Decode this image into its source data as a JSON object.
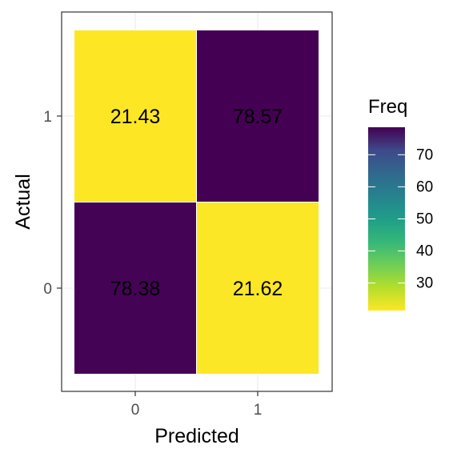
{
  "chart_data": {
    "type": "heatmap",
    "title": "",
    "xlabel": "Predicted",
    "ylabel": "Actual",
    "x_categories": [
      "0",
      "1"
    ],
    "y_categories": [
      "0",
      "1"
    ],
    "cells": [
      {
        "x": "0",
        "y": "1",
        "value": 21.43,
        "label": "21.43"
      },
      {
        "x": "1",
        "y": "1",
        "value": 78.57,
        "label": "78.57"
      },
      {
        "x": "0",
        "y": "0",
        "value": 78.38,
        "label": "78.38"
      },
      {
        "x": "1",
        "y": "0",
        "value": 21.62,
        "label": "21.62"
      }
    ],
    "legend": {
      "title": "Freq",
      "placement": "right",
      "ticks": [
        "30",
        "40",
        "50",
        "60",
        "70"
      ],
      "tick_values": [
        30,
        40,
        50,
        60,
        70
      ],
      "range": [
        21.43,
        78.57
      ]
    },
    "colormap": "viridis-reversed",
    "colors": {
      "low": "#fde725",
      "high": "#440154"
    },
    "grid": true,
    "theme": "bw"
  }
}
